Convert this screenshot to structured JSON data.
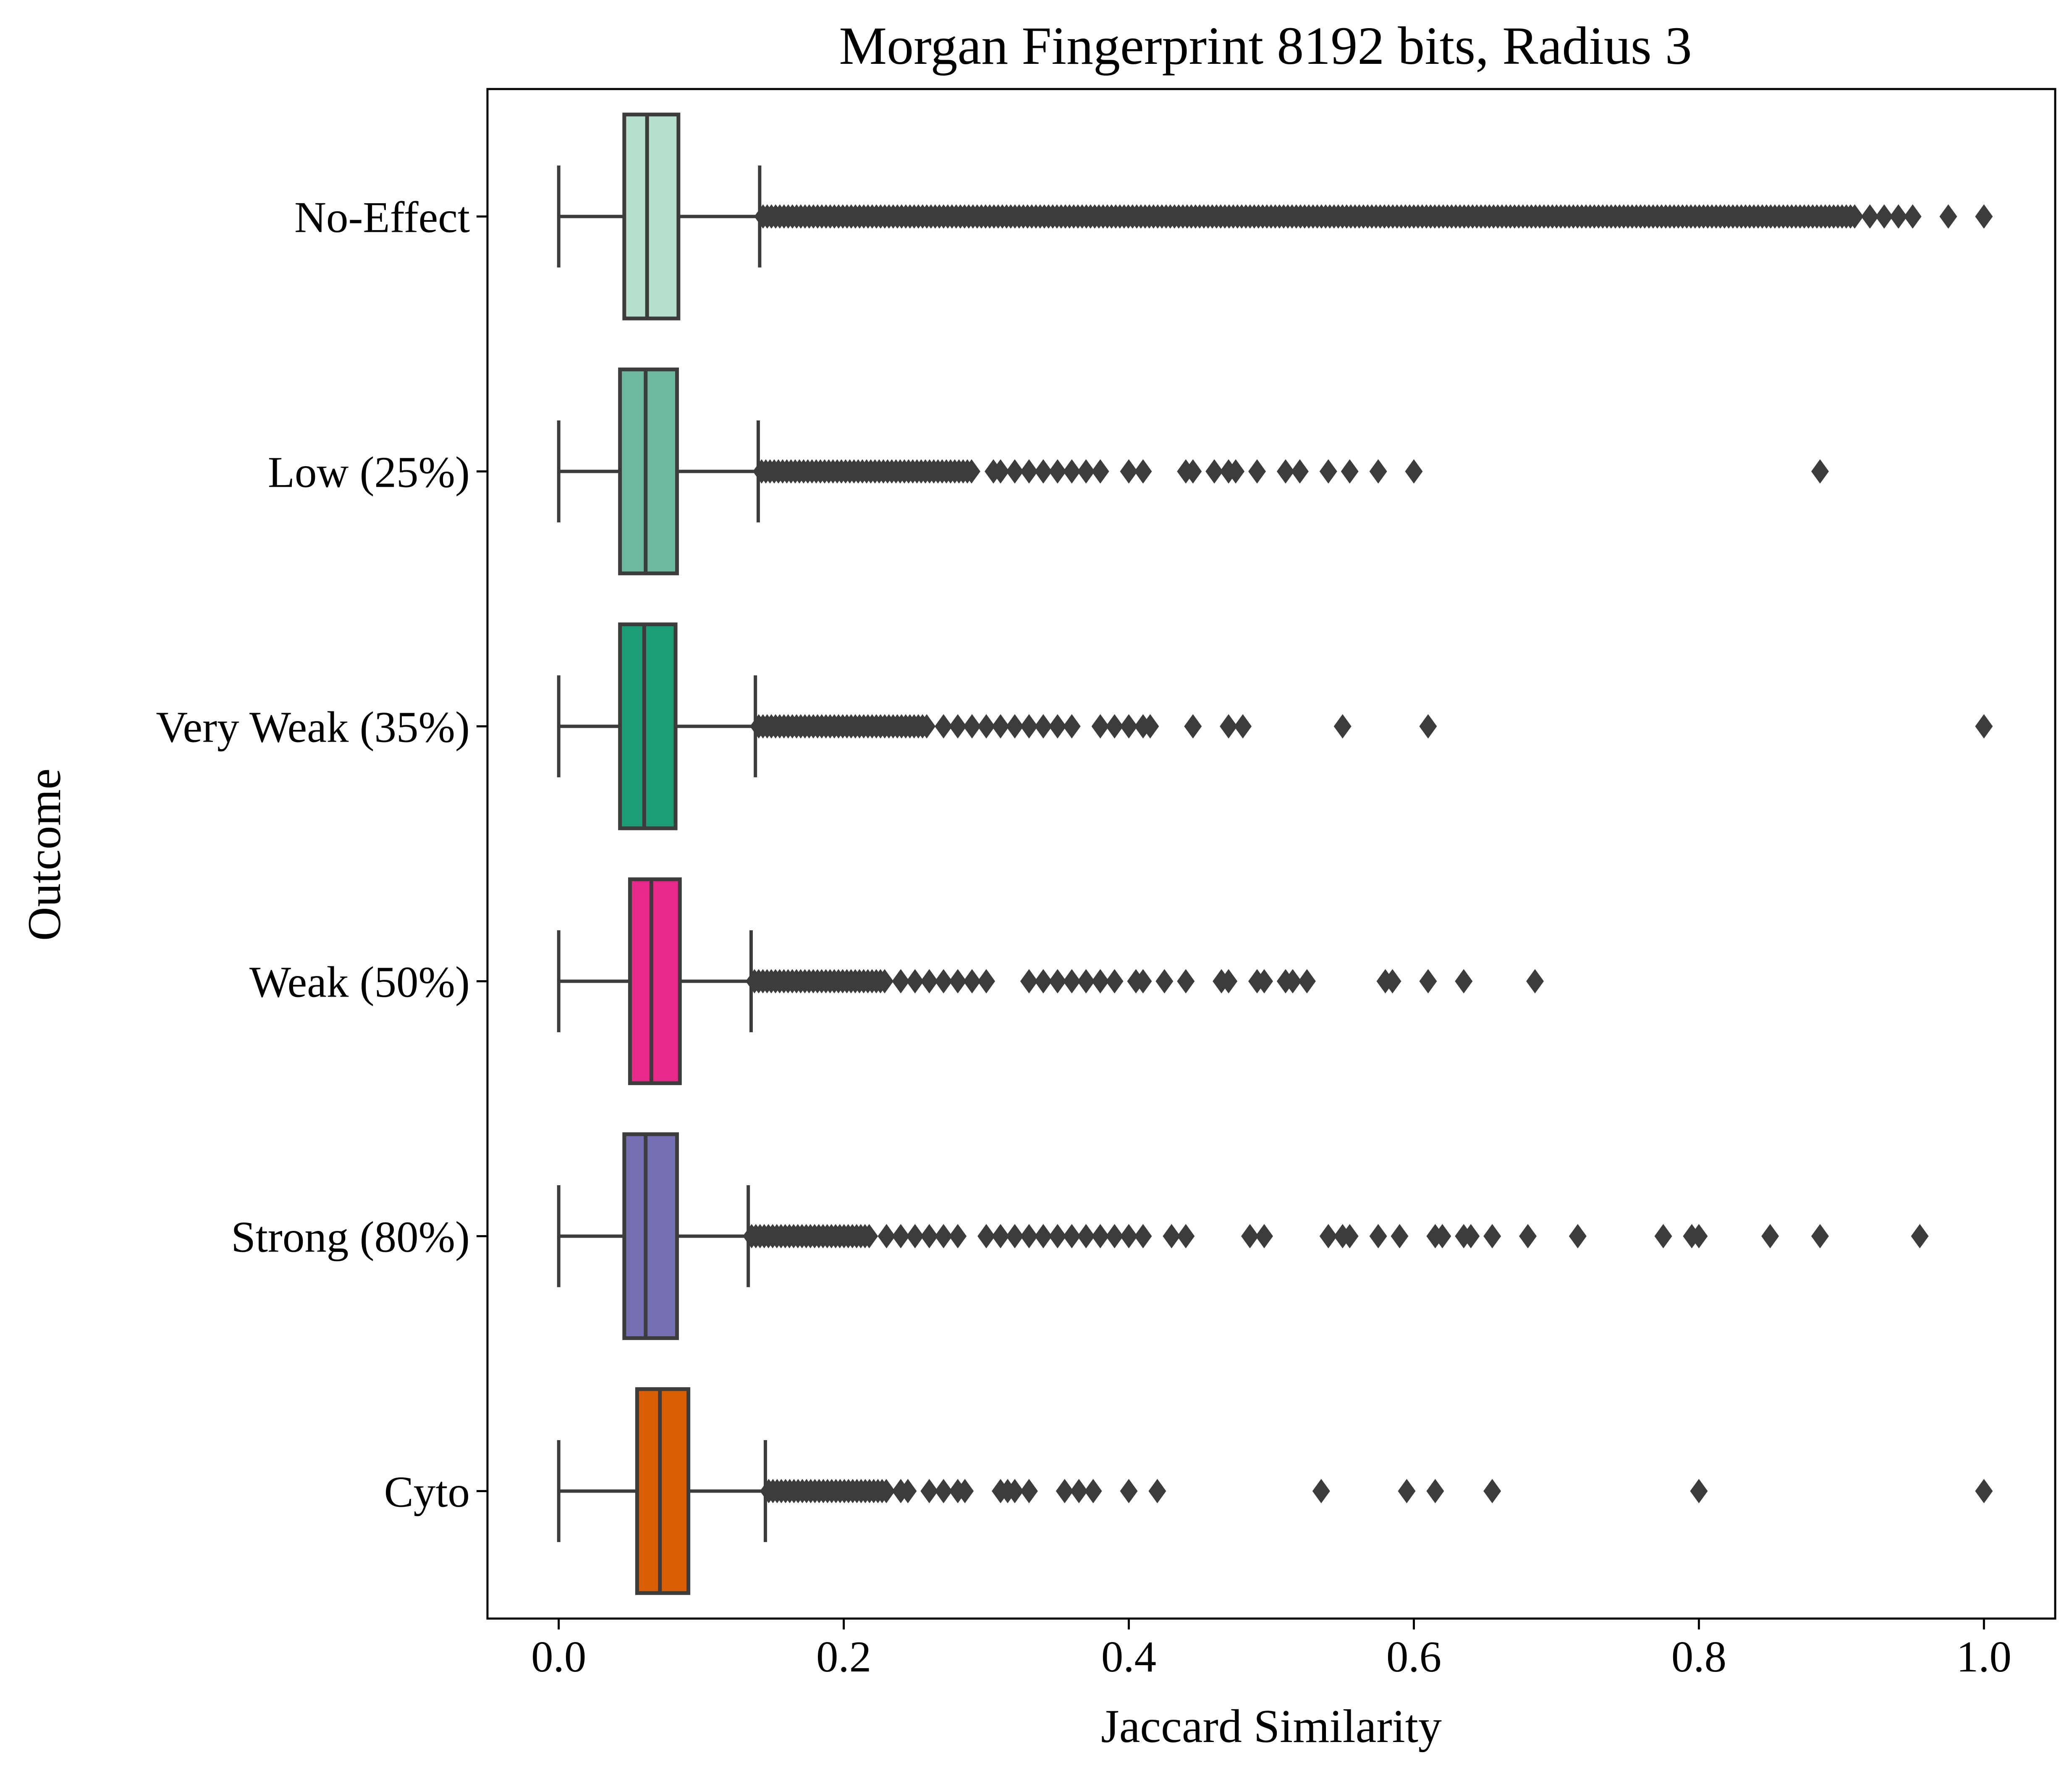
{
  "chart_data": {
    "type": "box",
    "orientation": "horizontal",
    "title": "Morgan Fingerprint 8192 bits, Radius 3",
    "xlabel": "Jaccard Similarity",
    "ylabel": "Outcome",
    "xlim": [
      -0.05,
      1.05
    ],
    "xticks": [
      "0.0",
      "0.2",
      "0.4",
      "0.6",
      "0.8",
      "1.0"
    ],
    "grid": false,
    "legend": "none",
    "colors": {
      "No-Effect": "#b3dfcb",
      "Low (25%)": "#6cb9a0",
      "Very Weak (35%)": "#1b9e77",
      "Weak (50%)": "#e7298a",
      "Strong (80%)": "#7570b3",
      "Cyto": "#d95f02",
      "edge": "#3c3c3c"
    },
    "series": [
      {
        "category": "No-Effect",
        "whisker_low": 0.0,
        "q1": 0.046,
        "median": 0.062,
        "q3": 0.084,
        "whisker_high": 0.141,
        "outlier_band_end": 0.91,
        "outliers": [
          0.92,
          0.93,
          0.94,
          0.95,
          0.975,
          1.0
        ]
      },
      {
        "category": "Low (25%)",
        "whisker_low": 0.0,
        "q1": 0.043,
        "median": 0.061,
        "q3": 0.083,
        "whisker_high": 0.14,
        "outlier_band_end": 0.29,
        "outliers": [
          0.305,
          0.31,
          0.32,
          0.33,
          0.34,
          0.35,
          0.36,
          0.37,
          0.38,
          0.4,
          0.41,
          0.44,
          0.445,
          0.46,
          0.47,
          0.475,
          0.49,
          0.51,
          0.52,
          0.54,
          0.555,
          0.575,
          0.6,
          0.885
        ]
      },
      {
        "category": "Very Weak (35%)",
        "whisker_low": 0.0,
        "q1": 0.043,
        "median": 0.06,
        "q3": 0.082,
        "whisker_high": 0.138,
        "outlier_band_end": 0.26,
        "outliers": [
          0.27,
          0.28,
          0.29,
          0.3,
          0.31,
          0.32,
          0.33,
          0.34,
          0.35,
          0.36,
          0.38,
          0.39,
          0.4,
          0.41,
          0.415,
          0.445,
          0.47,
          0.48,
          0.55,
          0.61,
          1.0
        ]
      },
      {
        "category": "Weak (50%)",
        "whisker_low": 0.0,
        "q1": 0.05,
        "median": 0.065,
        "q3": 0.085,
        "whisker_high": 0.135,
        "outlier_band_end": 0.23,
        "outliers": [
          0.24,
          0.25,
          0.26,
          0.27,
          0.28,
          0.29,
          0.3,
          0.33,
          0.34,
          0.35,
          0.36,
          0.37,
          0.38,
          0.39,
          0.405,
          0.41,
          0.425,
          0.44,
          0.465,
          0.47,
          0.49,
          0.495,
          0.51,
          0.515,
          0.525,
          0.58,
          0.585,
          0.61,
          0.635,
          0.685
        ]
      },
      {
        "category": "Strong (80%)",
        "whisker_low": 0.0,
        "q1": 0.046,
        "median": 0.061,
        "q3": 0.083,
        "whisker_high": 0.133,
        "outlier_band_end": 0.22,
        "outliers": [
          0.23,
          0.24,
          0.25,
          0.26,
          0.27,
          0.28,
          0.3,
          0.31,
          0.32,
          0.33,
          0.34,
          0.35,
          0.36,
          0.37,
          0.38,
          0.39,
          0.4,
          0.41,
          0.43,
          0.44,
          0.485,
          0.495,
          0.54,
          0.55,
          0.555,
          0.575,
          0.59,
          0.615,
          0.62,
          0.635,
          0.64,
          0.655,
          0.68,
          0.715,
          0.775,
          0.795,
          0.8,
          0.85,
          0.885,
          0.955
        ]
      },
      {
        "category": "Cyto",
        "whisker_low": 0.0,
        "q1": 0.055,
        "median": 0.071,
        "q3": 0.091,
        "whisker_high": 0.145,
        "outlier_band_end": 0.23,
        "outliers": [
          0.24,
          0.245,
          0.26,
          0.27,
          0.28,
          0.285,
          0.31,
          0.315,
          0.32,
          0.33,
          0.355,
          0.365,
          0.375,
          0.4,
          0.42,
          0.535,
          0.595,
          0.615,
          0.655,
          0.8,
          1.0
        ]
      }
    ]
  }
}
